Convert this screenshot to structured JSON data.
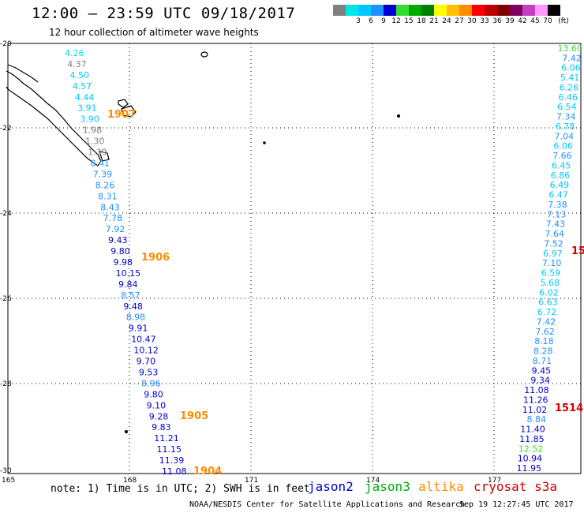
{
  "title": "12:00 – 23:59 UTC 09/18/2017",
  "subtitle": "12 hour collection of altimeter wave heights",
  "legend": {
    "unit": "(ft)",
    "items": [
      {
        "label": "",
        "color": "#808080"
      },
      {
        "label": "3",
        "color": "#00e5e5"
      },
      {
        "label": "6",
        "color": "#00c8ff"
      },
      {
        "label": "9",
        "color": "#1e90ff"
      },
      {
        "label": "12",
        "color": "#0000d0"
      },
      {
        "label": "15",
        "color": "#33dd33"
      },
      {
        "label": "18",
        "color": "#00aa00"
      },
      {
        "label": "21",
        "color": "#007f00"
      },
      {
        "label": "24",
        "color": "#ffff00"
      },
      {
        "label": "27",
        "color": "#ffc000"
      },
      {
        "label": "30",
        "color": "#ff8c00"
      },
      {
        "label": "33",
        "color": "#ff0000"
      },
      {
        "label": "36",
        "color": "#c00000"
      },
      {
        "label": "39",
        "color": "#800000"
      },
      {
        "label": "42",
        "color": "#800060"
      },
      {
        "label": "45",
        "color": "#c040c0"
      },
      {
        "label": "70",
        "color": "#ff99ff"
      },
      {
        "label": "",
        "color": "#000000"
      }
    ]
  },
  "axes": {
    "x_ticks": [
      "165",
      "168",
      "171",
      "174",
      "177"
    ],
    "y_ticks": [
      "-20",
      "-22",
      "-24",
      "-26",
      "-28",
      "-30"
    ]
  },
  "tracks": [
    {
      "points": [
        {
          "v": "4.26",
          "c": "#00e5e5"
        },
        {
          "v": "4.37",
          "c": "#808080"
        },
        {
          "v": "4.50",
          "c": "#00c8ff"
        },
        {
          "v": "4.57",
          "c": "#00c8ff"
        },
        {
          "v": "4.44",
          "c": "#00c8ff"
        },
        {
          "v": "3.91",
          "c": "#00c8ff"
        },
        {
          "v": "3.90",
          "c": "#00c8ff"
        },
        {
          "v": "1.98",
          "c": "#808080"
        },
        {
          "v": "1.30",
          "c": "#808080"
        },
        {
          "v": "1.39",
          "c": "#808080"
        },
        {
          "v": "8.41",
          "c": "#1e90ff"
        },
        {
          "v": "7.39",
          "c": "#1e90ff"
        },
        {
          "v": "8.26",
          "c": "#1e90ff"
        },
        {
          "v": "8.31",
          "c": "#1e90ff"
        },
        {
          "v": "8.43",
          "c": "#1e90ff"
        },
        {
          "v": "7.78",
          "c": "#1e90ff"
        },
        {
          "v": "7.92",
          "c": "#1e90ff"
        },
        {
          "v": "9.43",
          "c": "#0000d0"
        },
        {
          "v": "9.80",
          "c": "#0000d0"
        },
        {
          "v": "9.98",
          "c": "#0000d0"
        },
        {
          "v": "10.15",
          "c": "#0000d0"
        },
        {
          "v": "9.84",
          "c": "#0000d0"
        },
        {
          "v": "8.57",
          "c": "#1e90ff"
        },
        {
          "v": "9.48",
          "c": "#0000d0"
        },
        {
          "v": "8.98",
          "c": "#1e90ff"
        },
        {
          "v": "9.91",
          "c": "#0000d0"
        },
        {
          "v": "10.47",
          "c": "#0000d0"
        },
        {
          "v": "10.12",
          "c": "#0000d0"
        },
        {
          "v": "9.70",
          "c": "#0000d0"
        },
        {
          "v": "9.53",
          "c": "#0000d0"
        },
        {
          "v": "8.96",
          "c": "#1e90ff"
        },
        {
          "v": "9.80",
          "c": "#0000d0"
        },
        {
          "v": "9.10",
          "c": "#0000d0"
        },
        {
          "v": "9.28",
          "c": "#0000d0"
        },
        {
          "v": "9.83",
          "c": "#0000d0"
        },
        {
          "v": "11.21",
          "c": "#0000d0"
        },
        {
          "v": "11.15",
          "c": "#0000d0"
        },
        {
          "v": "11.39",
          "c": "#0000d0"
        },
        {
          "v": "11.08",
          "c": "#0000d0"
        }
      ]
    },
    {
      "points": [
        {
          "v": "13.60",
          "c": "#33dd33"
        },
        {
          "v": "7.42",
          "c": "#1e90ff"
        },
        {
          "v": "6.06",
          "c": "#00c8ff"
        },
        {
          "v": "5.41",
          "c": "#00c8ff"
        },
        {
          "v": "6.26",
          "c": "#00c8ff"
        },
        {
          "v": "6.46",
          "c": "#00c8ff"
        },
        {
          "v": "6.54",
          "c": "#00c8ff"
        },
        {
          "v": "7.34",
          "c": "#1e90ff"
        },
        {
          "v": "6.78",
          "c": "#00c8ff"
        },
        {
          "v": "7.04",
          "c": "#1e90ff"
        },
        {
          "v": "6.06",
          "c": "#00c8ff"
        },
        {
          "v": "7.66",
          "c": "#1e90ff"
        },
        {
          "v": "6.45",
          "c": "#00c8ff"
        },
        {
          "v": "6.86",
          "c": "#00c8ff"
        },
        {
          "v": "6.49",
          "c": "#00c8ff"
        },
        {
          "v": "6.47",
          "c": "#00c8ff"
        },
        {
          "v": "7.38",
          "c": "#1e90ff"
        },
        {
          "v": "7.13",
          "c": "#1e90ff"
        },
        {
          "v": "7.43",
          "c": "#1e90ff"
        },
        {
          "v": "7.64",
          "c": "#1e90ff"
        },
        {
          "v": "7.52",
          "c": "#1e90ff"
        },
        {
          "v": "6.97",
          "c": "#00c8ff"
        },
        {
          "v": "7.10",
          "c": "#1e90ff"
        },
        {
          "v": "6.59",
          "c": "#00c8ff"
        },
        {
          "v": "5.68",
          "c": "#00c8ff"
        },
        {
          "v": "6.02",
          "c": "#00c8ff"
        },
        {
          "v": "6.63",
          "c": "#00c8ff"
        },
        {
          "v": "6.72",
          "c": "#00c8ff"
        },
        {
          "v": "7.42",
          "c": "#1e90ff"
        },
        {
          "v": "7.62",
          "c": "#1e90ff"
        },
        {
          "v": "8.18",
          "c": "#1e90ff"
        },
        {
          "v": "8.28",
          "c": "#1e90ff"
        },
        {
          "v": "8.71",
          "c": "#1e90ff"
        },
        {
          "v": "9.45",
          "c": "#0000d0"
        },
        {
          "v": "9.34",
          "c": "#0000d0"
        },
        {
          "v": "11.08",
          "c": "#0000d0"
        },
        {
          "v": "11.26",
          "c": "#0000d0"
        },
        {
          "v": "11.02",
          "c": "#0000d0"
        },
        {
          "v": "8.84",
          "c": "#1e90ff"
        },
        {
          "v": "11.40",
          "c": "#0000d0"
        },
        {
          "v": "11.85",
          "c": "#0000d0"
        },
        {
          "v": "12.52",
          "c": "#33dd33"
        },
        {
          "v": "10.94",
          "c": "#0000d0"
        },
        {
          "v": "11.95",
          "c": "#0000d0"
        }
      ]
    }
  ],
  "time_labels": [
    {
      "text": "1907",
      "color": "#ff8c00"
    },
    {
      "text": "1906",
      "color": "#ff8c00"
    },
    {
      "text": "1905",
      "color": "#ff8c00"
    },
    {
      "text": "1904",
      "color": "#ff8c00"
    },
    {
      "text": "15",
      "color": "#d00000"
    },
    {
      "text": "1514",
      "color": "#d00000"
    }
  ],
  "note": "note: 1) Time is in UTC; 2) SWH is in feet",
  "satellites": [
    {
      "name": "jason2",
      "color": "#0000d0"
    },
    {
      "name": "jason3",
      "color": "#00aa00"
    },
    {
      "name": "altika",
      "color": "#ff8c00"
    },
    {
      "name": "cryosat s3a",
      "color": "#d00000"
    }
  ],
  "credit": "NOAA/NESDIS Center for Satellite Applications and Research",
  "timestamp": "Sep 19 12:27:45 UTC 2017"
}
